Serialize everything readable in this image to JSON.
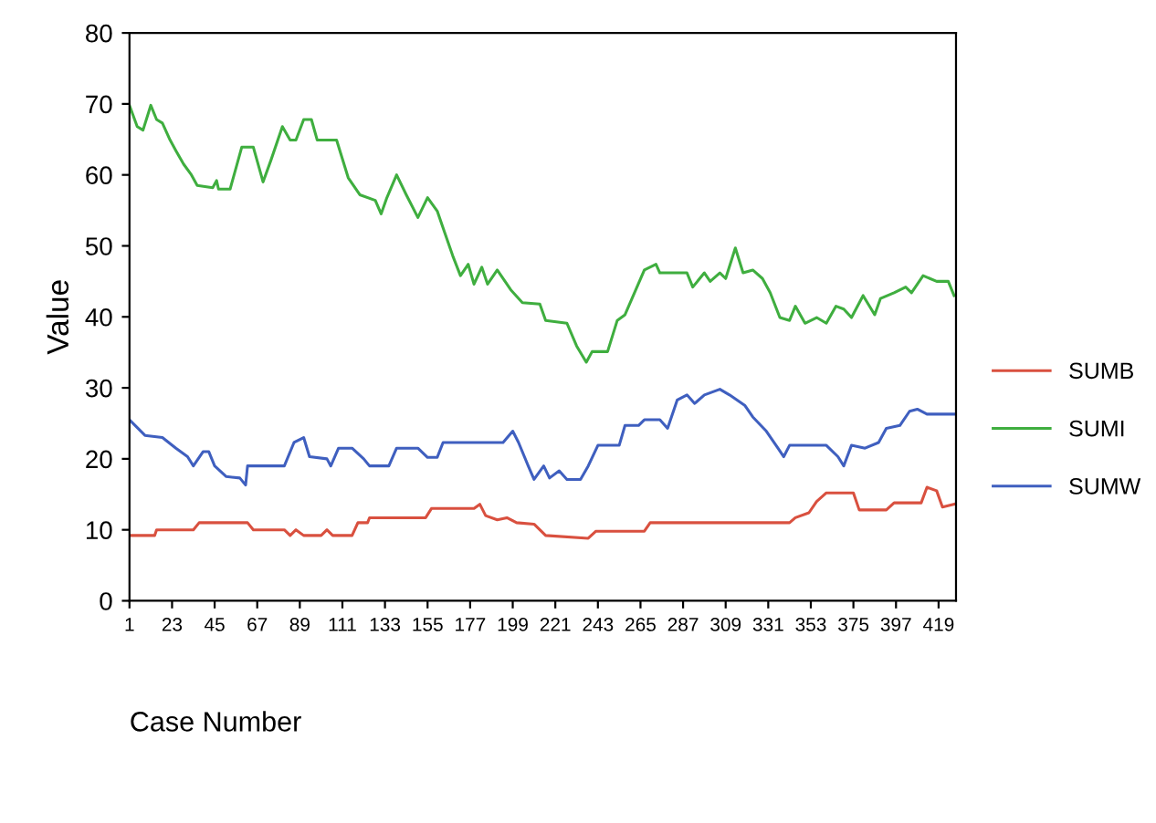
{
  "chart_data": {
    "type": "line",
    "xlabel": "Case Number",
    "ylabel": "Value",
    "xlim": [
      1,
      428
    ],
    "ylim": [
      0,
      80
    ],
    "yticks": [
      0,
      10,
      20,
      30,
      40,
      50,
      60,
      70,
      80
    ],
    "xticks": [
      1,
      23,
      45,
      67,
      89,
      111,
      133,
      155,
      177,
      199,
      221,
      243,
      265,
      287,
      309,
      331,
      353,
      375,
      397,
      419
    ],
    "grid": false,
    "legend": "right",
    "marker": "none",
    "line_style": "solid",
    "series": [
      {
        "name": "SUMB",
        "color": "#d9503f",
        "x": [
          1,
          14,
          15,
          34,
          37,
          62,
          65,
          81,
          84,
          87,
          91,
          100,
          103,
          106,
          116,
          119,
          124,
          125,
          154,
          157,
          179,
          182,
          185,
          191,
          196,
          201,
          210,
          216,
          238,
          242,
          267,
          270,
          342,
          345,
          352,
          356,
          361,
          375,
          378,
          392,
          396,
          410,
          413,
          418,
          421,
          427
        ],
        "values": [
          9.2,
          9.2,
          10,
          10,
          11,
          11,
          10,
          10,
          9.2,
          10,
          9.2,
          9.2,
          10,
          9.2,
          9.2,
          11,
          11,
          11.7,
          11.7,
          13,
          13,
          13.6,
          12,
          11.4,
          11.7,
          11,
          10.8,
          9.2,
          8.8,
          9.8,
          9.8,
          11,
          11,
          11.7,
          12.4,
          14,
          15.2,
          15.2,
          12.8,
          12.8,
          13.8,
          13.8,
          16,
          15.5,
          13.2,
          13.6
        ]
      },
      {
        "name": "SUMI",
        "color": "#3fae3f",
        "x": [
          1,
          5,
          8,
          12,
          15,
          18,
          22,
          25,
          29,
          33,
          36,
          44,
          46,
          47,
          53,
          59,
          65,
          69,
          70,
          74,
          80,
          84,
          87,
          91,
          95,
          98,
          108,
          114,
          120,
          128,
          131,
          134,
          139,
          144,
          150,
          155,
          160,
          168,
          172,
          176,
          179,
          183,
          186,
          191,
          198,
          204,
          213,
          216,
          227,
          232,
          237,
          240,
          248,
          253,
          257,
          267,
          273,
          275,
          289,
          292,
          298,
          301,
          306,
          309,
          314,
          318,
          323,
          328,
          332,
          337,
          342,
          345,
          350,
          356,
          361,
          366,
          370,
          374,
          380,
          386,
          389,
          396,
          402,
          405,
          411,
          418,
          424,
          427
        ],
        "values": [
          69.8,
          66.8,
          66.3,
          69.8,
          67.8,
          67.3,
          64.9,
          63.4,
          61.5,
          60,
          58.5,
          58.2,
          59.2,
          58,
          58,
          63.9,
          63.9,
          60,
          59,
          62,
          66.8,
          64.9,
          64.9,
          67.8,
          67.8,
          64.9,
          64.9,
          59.6,
          57.2,
          56.4,
          54.5,
          56.8,
          60,
          57.2,
          54,
          56.8,
          54.9,
          48.6,
          45.8,
          47.4,
          44.6,
          47,
          44.6,
          46.6,
          43.8,
          42,
          41.8,
          39.5,
          39.1,
          35.9,
          33.6,
          35.1,
          35.1,
          39.5,
          40.3,
          46.6,
          47.4,
          46.2,
          46.2,
          44.2,
          46.2,
          45,
          46.2,
          45.4,
          49.7,
          46.2,
          46.6,
          45.4,
          43.4,
          39.9,
          39.5,
          41.5,
          39.1,
          39.9,
          39.1,
          41.5,
          41.1,
          39.9,
          43,
          40.3,
          42.6,
          43.4,
          44.2,
          43.4,
          45.8,
          45,
          45,
          43
        ]
      },
      {
        "name": "SUMW",
        "color": "#3f5fbf",
        "x": [
          1,
          9,
          18,
          25,
          31,
          34,
          39,
          42,
          45,
          51,
          58,
          61,
          62,
          81,
          86,
          91,
          94,
          103,
          105,
          109,
          116,
          122,
          125,
          135,
          139,
          150,
          155,
          160,
          163,
          194,
          199,
          202,
          207,
          210,
          215,
          218,
          223,
          227,
          234,
          238,
          243,
          254,
          257,
          264,
          267,
          275,
          279,
          284,
          289,
          293,
          298,
          306,
          311,
          319,
          323,
          330,
          336,
          339,
          342,
          348,
          355,
          361,
          367,
          370,
          374,
          381,
          388,
          392,
          399,
          404,
          408,
          413,
          427
        ],
        "values": [
          25.5,
          23.3,
          23,
          21.5,
          20.3,
          19,
          21,
          21,
          19,
          17.5,
          17.3,
          16.3,
          19,
          19,
          22.3,
          23,
          20.3,
          20,
          19,
          21.5,
          21.5,
          20,
          19,
          19,
          21.5,
          21.5,
          20.2,
          20.2,
          22.3,
          22.3,
          23.9,
          22.3,
          19,
          17.1,
          19,
          17.3,
          18.3,
          17.1,
          17.1,
          19,
          21.9,
          21.9,
          24.7,
          24.7,
          25.5,
          25.5,
          24.3,
          28.3,
          29,
          27.8,
          29,
          29.8,
          29,
          27.5,
          25.9,
          23.9,
          21.5,
          20.3,
          21.9,
          21.9,
          21.9,
          21.9,
          20.3,
          19,
          21.9,
          21.5,
          22.3,
          24.3,
          24.7,
          26.7,
          27,
          26.3,
          26.3
        ]
      }
    ]
  }
}
